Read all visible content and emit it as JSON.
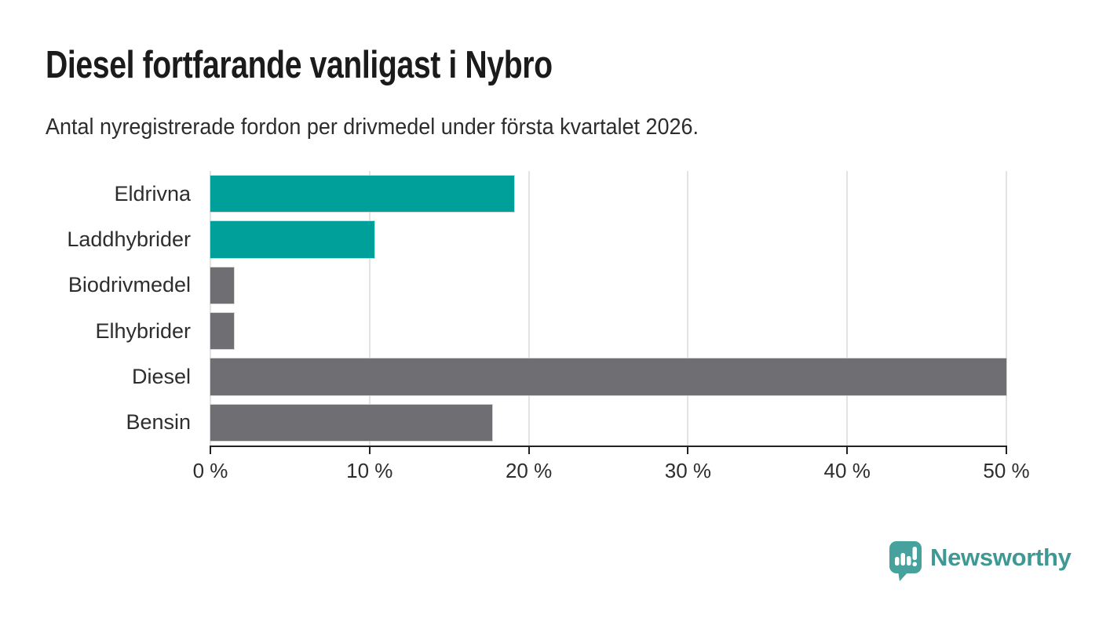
{
  "chart_data": {
    "type": "bar",
    "orientation": "horizontal",
    "title": "Diesel fortfarande vanligast i Nybro",
    "subtitle": "Antal nyregistrerade fordon per drivmedel under första kvartalet 2026.",
    "categories": [
      "Eldrivna",
      "Laddhybrider",
      "Biodrivmedel",
      "Elhybrider",
      "Diesel",
      "Bensin"
    ],
    "values": [
      19.1,
      10.3,
      1.5,
      1.5,
      50,
      17.7
    ],
    "unit": "%",
    "bar_colors": [
      "#00a09a",
      "#00a09a",
      "#6e6e73",
      "#6e6e73",
      "#6e6e73",
      "#6e6e73"
    ],
    "x_tick_values": [
      0,
      10,
      20,
      30,
      40,
      50
    ],
    "x_tick_labels": [
      "0 %",
      "10 %",
      "20 %",
      "30 %",
      "40 %",
      "50 %"
    ],
    "xlim": [
      0,
      50
    ],
    "grid": "vertical-only",
    "legend": "none",
    "colors": {
      "accent_teal": "#00a09a",
      "neutral_gray": "#6e6e73",
      "gridline": "#e3e3e3",
      "axis": "#222222",
      "text": "#2d2d2d",
      "title": "#1b1b1b"
    }
  },
  "branding": {
    "icon": "bar-chart-speech-bubble-icon",
    "icon_color": "#47a19c",
    "name": "Newsworthy",
    "name_color": "#3e9894"
  }
}
